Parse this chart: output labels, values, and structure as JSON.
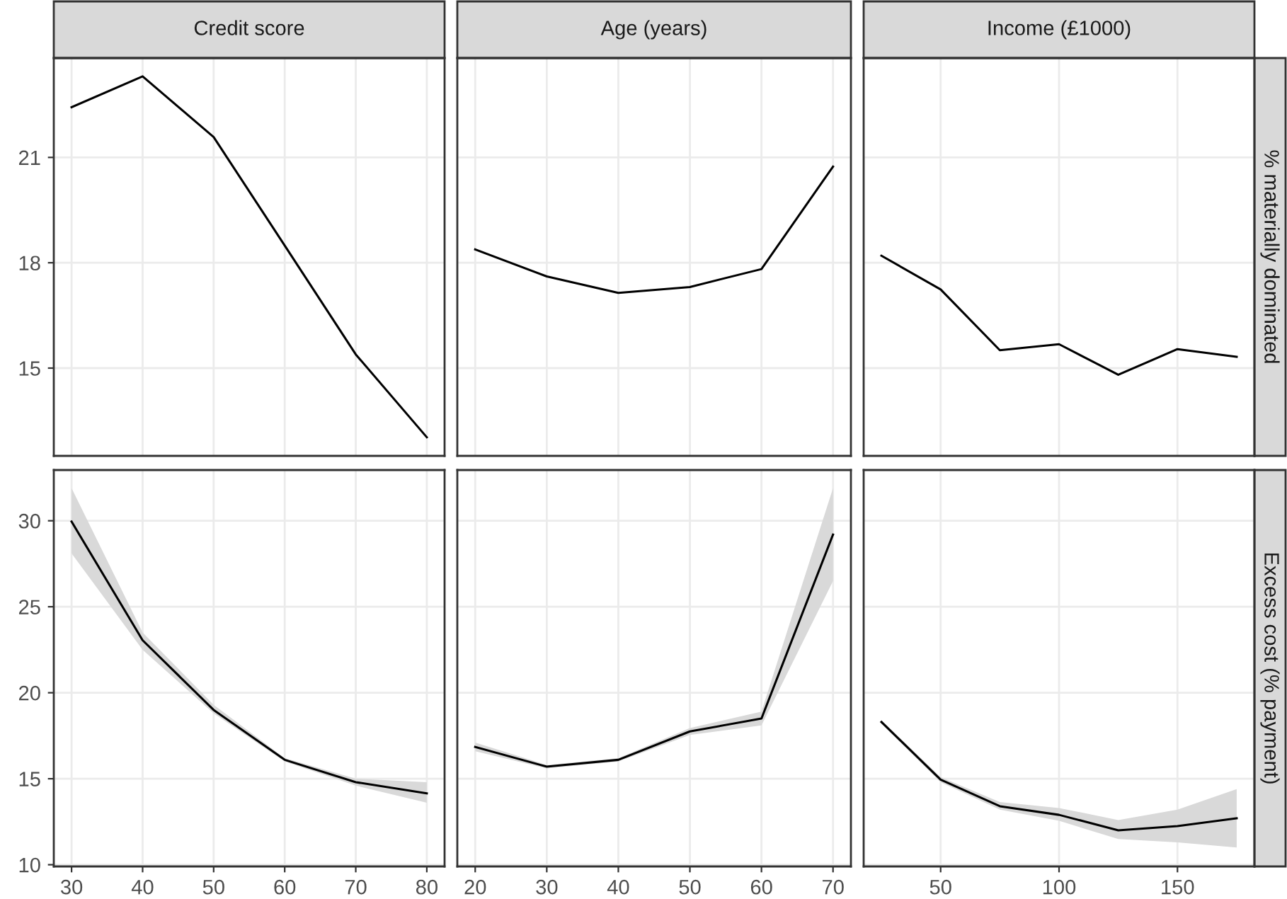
{
  "chart_data": [
    {
      "type": "line",
      "title": "Credit score",
      "x": [
        30,
        40,
        50,
        60,
        70,
        80
      ],
      "xlim": [
        27.5,
        82.5
      ],
      "xticks": [
        30,
        40,
        50,
        60,
        70,
        80
      ],
      "ylim": [
        12.5,
        23.83
      ],
      "yticks": [
        15,
        18,
        21
      ],
      "tick_labels": "y",
      "grid": true,
      "color": "#000000",
      "values": [
        22.43,
        23.31,
        21.58,
        18.49,
        15.39,
        13.03
      ]
    },
    {
      "type": "line",
      "title": "Age (years)",
      "x": [
        20,
        30,
        40,
        50,
        60,
        70
      ],
      "xlim": [
        17.5,
        72.5
      ],
      "xticks": [
        20,
        30,
        40,
        50,
        60,
        70
      ],
      "ylim": [
        12.5,
        23.83
      ],
      "yticks": [
        15,
        18,
        21
      ],
      "tick_labels": false,
      "grid": true,
      "color": "#000000",
      "values": [
        18.38,
        17.61,
        17.14,
        17.31,
        17.82,
        20.74
      ]
    },
    {
      "type": "line",
      "title": "Income (£1000)",
      "ylabel": "% materially dominated",
      "x": [
        25,
        50,
        75,
        100,
        125,
        150,
        175
      ],
      "xlim": [
        17.5,
        182.5
      ],
      "xticks": [
        50,
        100,
        150
      ],
      "ylim": [
        12.5,
        23.83
      ],
      "yticks": [
        15,
        18,
        21
      ],
      "tick_labels": false,
      "grid": true,
      "color": "#000000",
      "values": [
        18.2,
        17.24,
        15.51,
        15.68,
        14.81,
        15.54,
        15.32
      ]
    },
    {
      "type": "line",
      "x": [
        30,
        40,
        50,
        60,
        70,
        80
      ],
      "xlim": [
        27.5,
        82.5
      ],
      "xticks": [
        30,
        40,
        50,
        60,
        70,
        80
      ],
      "ylim": [
        9.9,
        32.95
      ],
      "yticks": [
        10,
        15,
        20,
        25,
        30
      ],
      "grid": true,
      "series": [
        {
          "color": "#000000",
          "values": [
            29.95,
            23.05,
            19.0,
            16.1,
            14.8,
            14.15
          ],
          "lower": [
            28.1,
            22.5,
            18.8,
            16.0,
            14.6,
            13.6
          ],
          "upper": [
            31.9,
            23.5,
            19.3,
            16.2,
            15.0,
            14.8
          ]
        }
      ]
    },
    {
      "type": "line",
      "x": [
        20,
        30,
        40,
        50,
        60,
        70
      ],
      "xlim": [
        17.5,
        72.5
      ],
      "xticks": [
        20,
        30,
        40,
        50,
        60,
        70
      ],
      "ylim": [
        9.9,
        32.95
      ],
      "yticks": [
        10,
        15,
        20,
        25,
        30
      ],
      "tick_labels": "x",
      "grid": true,
      "series": [
        {
          "color": "#000000",
          "values": [
            16.85,
            15.7,
            16.1,
            17.75,
            18.5,
            29.2
          ],
          "lower": [
            16.6,
            15.6,
            16.0,
            17.55,
            18.1,
            26.5
          ],
          "upper": [
            17.1,
            15.8,
            16.2,
            17.95,
            18.9,
            31.9
          ]
        }
      ]
    },
    {
      "type": "line",
      "ylabel": "Excess cost (% payment)",
      "x": [
        25,
        50,
        75,
        100,
        125,
        150,
        175
      ],
      "xlim": [
        17.5,
        182.5
      ],
      "xticks": [
        50,
        100,
        150
      ],
      "ylim": [
        9.9,
        32.95
      ],
      "yticks": [
        10,
        15,
        20,
        25,
        30
      ],
      "tick_labels": "x",
      "grid": true,
      "series": [
        {
          "color": "#000000",
          "values": [
            18.3,
            14.95,
            13.4,
            12.9,
            12.0,
            12.25,
            12.7
          ],
          "lower": [
            18.2,
            14.8,
            13.2,
            12.55,
            11.5,
            11.3,
            11.0
          ],
          "upper": [
            18.4,
            15.1,
            13.65,
            13.3,
            12.6,
            13.2,
            14.4
          ]
        }
      ]
    }
  ]
}
